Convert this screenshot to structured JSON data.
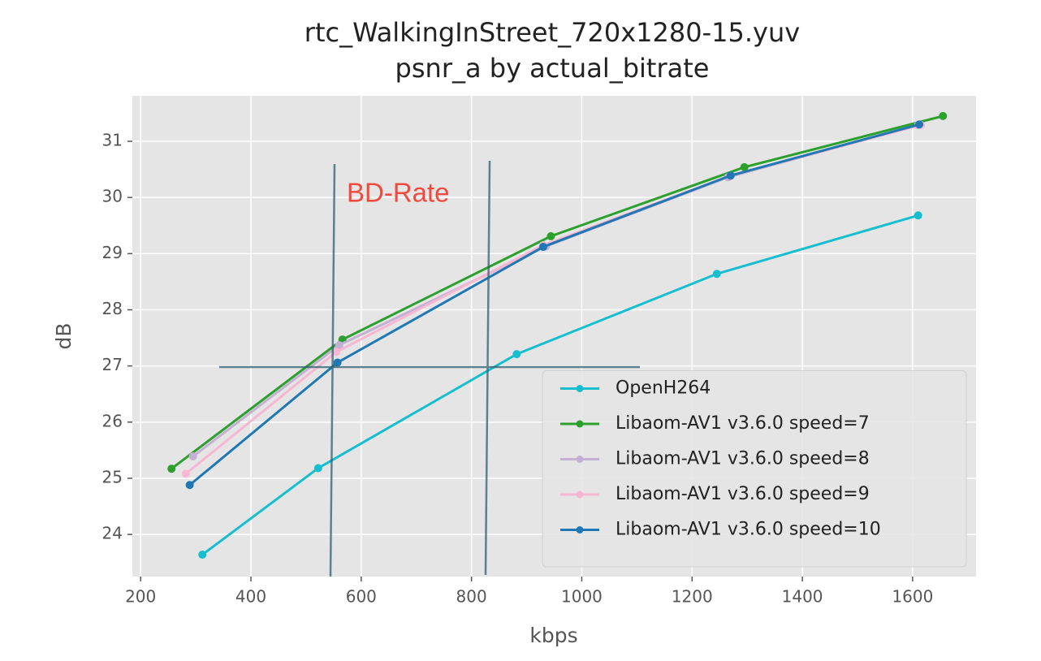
{
  "chart_data": {
    "type": "line",
    "title": "rtc_WalkingInStreet_720x1280-15.yuv",
    "subtitle": "psnr_a by actual_bitrate",
    "x_label": "kbps",
    "y_label": "dB",
    "annotation": "BD-Rate",
    "xlim": [
      185,
      1715
    ],
    "ylim": [
      23.25,
      31.81
    ],
    "xticks": [
      200,
      400,
      600,
      800,
      1000,
      1200,
      1400,
      1600
    ],
    "yticks": [
      24,
      25,
      26,
      27,
      28,
      29,
      30,
      31
    ],
    "grid": true,
    "legend": "lower right",
    "series": [
      {
        "name": "OpenH264",
        "color": "#17becf",
        "x": [
          312,
          522,
          882,
          1245,
          1610
        ],
        "values": [
          23.64,
          25.18,
          27.21,
          28.64,
          29.68
        ]
      },
      {
        "name": "Libaom-AV1 v3.6.0 speed=7",
        "color": "#2ca02c",
        "x": [
          256,
          566,
          944,
          1295,
          1655
        ],
        "values": [
          25.17,
          27.47,
          29.31,
          30.54,
          31.45
        ]
      },
      {
        "name": "Libaom-AV1 v3.6.0 speed=8",
        "color": "#c5b0d5",
        "x": [
          295,
          560,
          935,
          1265,
          1610
        ],
        "values": [
          25.39,
          27.37,
          29.13,
          30.36,
          31.29
        ]
      },
      {
        "name": "Libaom-AV1 v3.6.0 speed=9",
        "color": "#f7b6d2",
        "x": [
          282,
          555,
          930,
          1270,
          1615
        ],
        "values": [
          25.08,
          27.25,
          29.15,
          30.39,
          31.29
        ]
      },
      {
        "name": "Libaom-AV1 v3.6.0 speed=10",
        "color": "#1f77b4",
        "x": [
          289,
          557,
          930,
          1270,
          1612
        ],
        "values": [
          24.88,
          27.06,
          29.12,
          30.39,
          31.3
        ]
      }
    ]
  }
}
